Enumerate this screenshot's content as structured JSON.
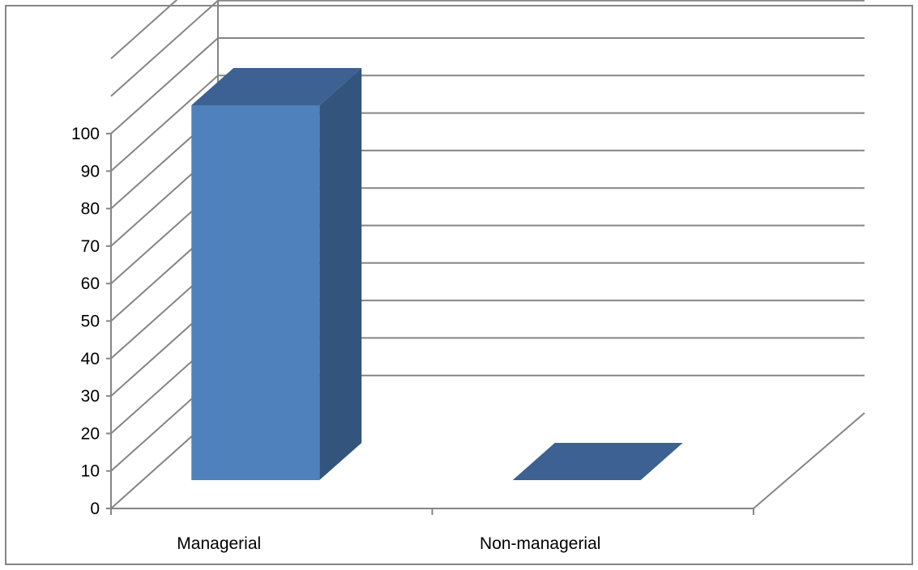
{
  "colors": {
    "bar_front": "#4F81BD",
    "bar_top": "#3C6192",
    "bar_side": "#33547D",
    "gridline": "#858585",
    "frame": "#868686"
  },
  "chart_data": {
    "type": "bar",
    "style": "3d-column",
    "categories": [
      "Managerial",
      "Non-managerial"
    ],
    "values": [
      100,
      0
    ],
    "ylim": [
      0,
      100
    ],
    "yticks": [
      0,
      10,
      20,
      30,
      40,
      50,
      60,
      70,
      80,
      90,
      100
    ],
    "title": "",
    "xlabel": "",
    "ylabel": "",
    "grid": true,
    "legend": "none"
  }
}
